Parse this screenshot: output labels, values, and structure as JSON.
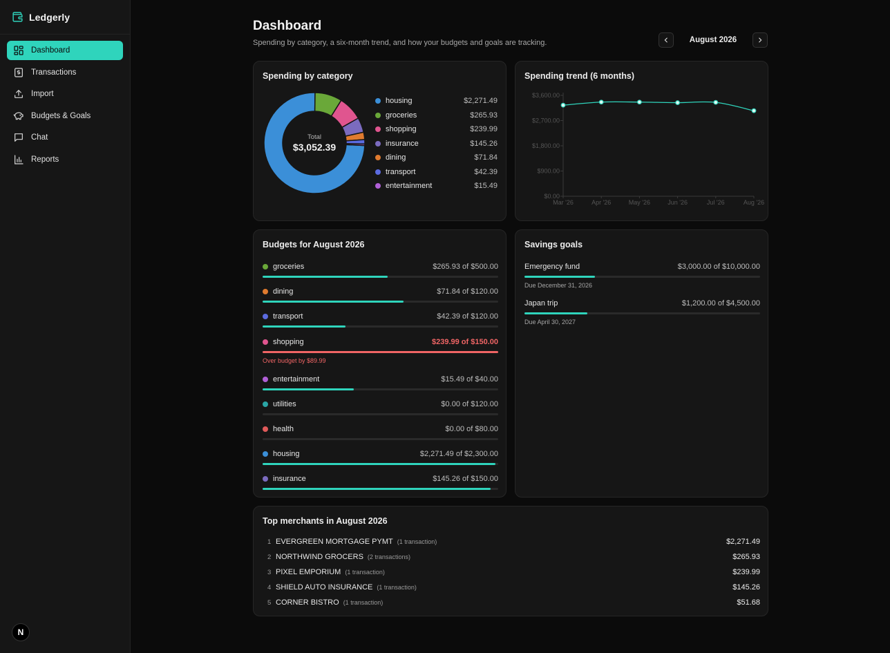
{
  "app": {
    "name": "Ledgerly"
  },
  "sidebar": {
    "items": [
      {
        "label": "Dashboard",
        "icon": "dashboard-icon",
        "active": true
      },
      {
        "label": "Transactions",
        "icon": "dollar-doc-icon"
      },
      {
        "label": "Import",
        "icon": "upload-icon"
      },
      {
        "label": "Budgets & Goals",
        "icon": "piggy-bank-icon"
      },
      {
        "label": "Chat",
        "icon": "chat-icon"
      },
      {
        "label": "Reports",
        "icon": "bar-chart-icon"
      }
    ],
    "footer_logo": "N"
  },
  "header": {
    "title": "Dashboard",
    "subtitle": "Spending by category, a six-month trend, and how your budgets and goals are tracking.",
    "month": "August 2026"
  },
  "spending_by_category": {
    "title": "Spending by category",
    "total_label": "Total",
    "total_value": "$3,052.39",
    "items": [
      {
        "name": "housing",
        "value": "$2,271.49",
        "amount": 2271.49,
        "color": "#3b8fd8"
      },
      {
        "name": "groceries",
        "value": "$265.93",
        "amount": 265.93,
        "color": "#6aa839"
      },
      {
        "name": "shopping",
        "value": "$239.99",
        "amount": 239.99,
        "color": "#e0558f"
      },
      {
        "name": "insurance",
        "value": "$145.26",
        "amount": 145.26,
        "color": "#7b6bbf"
      },
      {
        "name": "dining",
        "value": "$71.84",
        "amount": 71.84,
        "color": "#e07b2f"
      },
      {
        "name": "transport",
        "value": "$42.39",
        "amount": 42.39,
        "color": "#5b6be0"
      },
      {
        "name": "entertainment",
        "value": "$15.49",
        "amount": 15.49,
        "color": "#b05fd6"
      }
    ]
  },
  "trend": {
    "title": "Spending trend (6 months)",
    "chart_data": {
      "type": "line",
      "x": [
        "Mar '26",
        "Apr '26",
        "May '26",
        "Jun '26",
        "Jul '26",
        "Aug '26"
      ],
      "y_ticks": [
        "$0.00",
        "$900.00",
        "$1,800.00",
        "$2,700.00",
        "$3,600.00"
      ],
      "ylim": [
        0,
        3600
      ],
      "values": [
        3250,
        3360,
        3360,
        3340,
        3350,
        3052.39
      ],
      "color": "#2fd4bc",
      "grid": false
    }
  },
  "budgets": {
    "title": "Budgets for August 2026",
    "items": [
      {
        "name": "groceries",
        "value": "$265.93 of $500.00",
        "fraction": 0.532,
        "color": "#6aa839"
      },
      {
        "name": "dining",
        "value": "$71.84 of $120.00",
        "fraction": 0.599,
        "color": "#e07b2f"
      },
      {
        "name": "transport",
        "value": "$42.39 of $120.00",
        "fraction": 0.353,
        "color": "#5b6be0"
      },
      {
        "name": "shopping",
        "value": "$239.99 of $150.00",
        "fraction": 1.0,
        "color": "#e0558f",
        "over": true,
        "note": "Over budget by $89.99"
      },
      {
        "name": "entertainment",
        "value": "$15.49 of $40.00",
        "fraction": 0.387,
        "color": "#b05fd6"
      },
      {
        "name": "utilities",
        "value": "$0.00 of $120.00",
        "fraction": 0,
        "color": "#2aa6a6"
      },
      {
        "name": "health",
        "value": "$0.00 of $80.00",
        "fraction": 0,
        "color": "#e05a5a"
      },
      {
        "name": "housing",
        "value": "$2,271.49 of $2,300.00",
        "fraction": 0.988,
        "color": "#3b8fd8"
      },
      {
        "name": "insurance",
        "value": "$145.26 of $150.00",
        "fraction": 0.968,
        "color": "#7b6bbf"
      }
    ]
  },
  "savings_goals": {
    "title": "Savings goals",
    "items": [
      {
        "name": "Emergency fund",
        "value": "$3,000.00 of $10,000.00",
        "fraction": 0.3,
        "due": "Due December 31, 2026"
      },
      {
        "name": "Japan trip",
        "value": "$1,200.00 of $4,500.00",
        "fraction": 0.267,
        "due": "Due April 30, 2027"
      }
    ]
  },
  "merchants": {
    "title": "Top merchants in August 2026",
    "items": [
      {
        "rank": "1",
        "name": "EVERGREEN MORTGAGE PYMT",
        "count": "(1 transaction)",
        "value": "$2,271.49"
      },
      {
        "rank": "2",
        "name": "NORTHWIND GROCERS",
        "count": "(2 transactions)",
        "value": "$265.93"
      },
      {
        "rank": "3",
        "name": "PIXEL EMPORIUM",
        "count": "(1 transaction)",
        "value": "$239.99"
      },
      {
        "rank": "4",
        "name": "SHIELD AUTO INSURANCE",
        "count": "(1 transaction)",
        "value": "$145.26"
      },
      {
        "rank": "5",
        "name": "CORNER BISTRO",
        "count": "(1 transaction)",
        "value": "$51.68"
      }
    ]
  }
}
